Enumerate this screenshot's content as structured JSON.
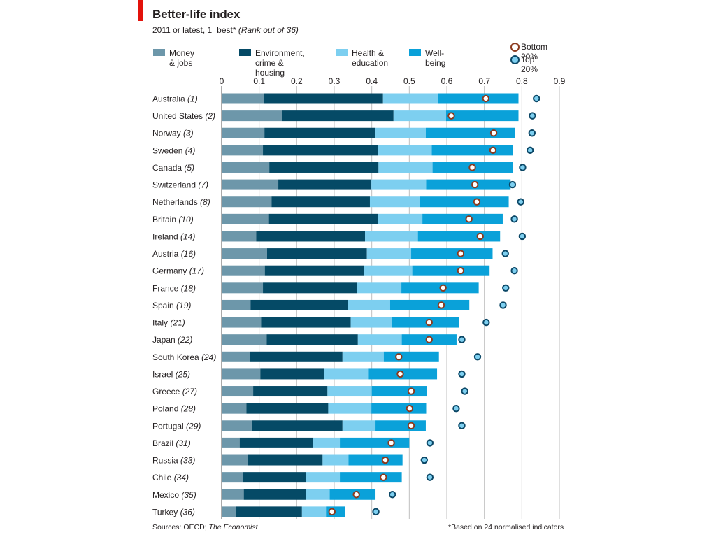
{
  "header": {
    "title": "Better-life index",
    "subtitle": "2011 or latest, 1=best*",
    "subtitle_note": "(Rank out of 36)"
  },
  "legend": {
    "money": "Money & jobs",
    "environment": "Environment,\ncrime & housing",
    "health": "Health &\neducation",
    "wellbeing": "Well-being",
    "bottom": "Bottom 20%",
    "top": "Top 20%"
  },
  "colors": {
    "money": "#6d97aa",
    "environment": "#054a66",
    "health": "#7dcff0",
    "wellbeing": "#0aa1d9",
    "bottom_marker_border": "#8b3a1e",
    "top_marker_border": "#0b4766",
    "top_marker_fill": "#7dcff0",
    "gridline": "#bfbfbf"
  },
  "footer": {
    "sources_prefix": "Sources: OECD; ",
    "sources_italic": "The Economist",
    "note": "*Based on 24 normalised indicators"
  },
  "chart_data": {
    "type": "bar",
    "orientation": "horizontal",
    "stacked": true,
    "xlim": [
      0,
      0.9
    ],
    "xticks": [
      "0",
      "0.1",
      "0.2",
      "0.3",
      "0.4",
      "0.5",
      "0.6",
      "0.7",
      "0.8",
      "0.9"
    ],
    "categories": [
      "Australia",
      "United States",
      "Norway",
      "Sweden",
      "Canada",
      "Switzerland",
      "Netherlands",
      "Britain",
      "Ireland",
      "Austria",
      "Germany",
      "France",
      "Spain",
      "Italy",
      "Japan",
      "South Korea",
      "Israel",
      "Greece",
      "Poland",
      "Portugal",
      "Brazil",
      "Russia",
      "Chile",
      "Mexico",
      "Turkey"
    ],
    "ranks": [
      "(1)",
      "(2)",
      "(3)",
      "(4)",
      "(5)",
      "(7)",
      "(8)",
      "(10)",
      "(14)",
      "(16)",
      "(17)",
      "(18)",
      "(19)",
      "(21)",
      "(22)",
      "(24)",
      "(25)",
      "(27)",
      "(28)",
      "(29)",
      "(31)",
      "(33)",
      "(34)",
      "(35)",
      "(36)"
    ],
    "series": [
      {
        "name": "Money & jobs",
        "values": [
          0.112,
          0.16,
          0.114,
          0.11,
          0.127,
          0.151,
          0.133,
          0.126,
          0.092,
          0.121,
          0.115,
          0.11,
          0.077,
          0.105,
          0.12,
          0.075,
          0.103,
          0.084,
          0.066,
          0.08,
          0.048,
          0.069,
          0.057,
          0.059,
          0.038
        ]
      },
      {
        "name": "Environment,\ncrime & housing",
        "values": [
          0.318,
          0.298,
          0.296,
          0.306,
          0.291,
          0.248,
          0.262,
          0.29,
          0.29,
          0.266,
          0.264,
          0.25,
          0.259,
          0.239,
          0.243,
          0.247,
          0.17,
          0.198,
          0.218,
          0.242,
          0.195,
          0.2,
          0.167,
          0.165,
          0.176
        ]
      },
      {
        "name": "Health &\neducation",
        "values": [
          0.147,
          0.14,
          0.134,
          0.144,
          0.144,
          0.146,
          0.133,
          0.119,
          0.141,
          0.118,
          0.129,
          0.119,
          0.113,
          0.11,
          0.117,
          0.11,
          0.119,
          0.118,
          0.115,
          0.088,
          0.072,
          0.069,
          0.091,
          0.064,
          0.064
        ]
      },
      {
        "name": "Well-being",
        "values": [
          0.214,
          0.193,
          0.238,
          0.216,
          0.214,
          0.225,
          0.237,
          0.214,
          0.219,
          0.217,
          0.206,
          0.206,
          0.211,
          0.179,
          0.146,
          0.147,
          0.182,
          0.146,
          0.146,
          0.134,
          0.185,
          0.144,
          0.165,
          0.122,
          0.05
        ]
      }
    ],
    "bottom_20": [
      0.704,
      0.612,
      0.725,
      0.723,
      0.668,
      0.675,
      0.68,
      0.659,
      0.689,
      0.637,
      0.637,
      0.59,
      0.585,
      0.553,
      0.553,
      0.472,
      0.476,
      0.505,
      0.501,
      0.505,
      0.452,
      0.436,
      0.431,
      0.359,
      0.294
    ],
    "top_20": [
      0.839,
      0.828,
      0.827,
      0.822,
      0.802,
      0.775,
      0.797,
      0.78,
      0.801,
      0.756,
      0.78,
      0.757,
      0.75,
      0.705,
      0.64,
      0.682,
      0.64,
      0.648,
      0.625,
      0.64,
      0.555,
      0.54,
      0.555,
      0.455,
      0.411
    ]
  }
}
